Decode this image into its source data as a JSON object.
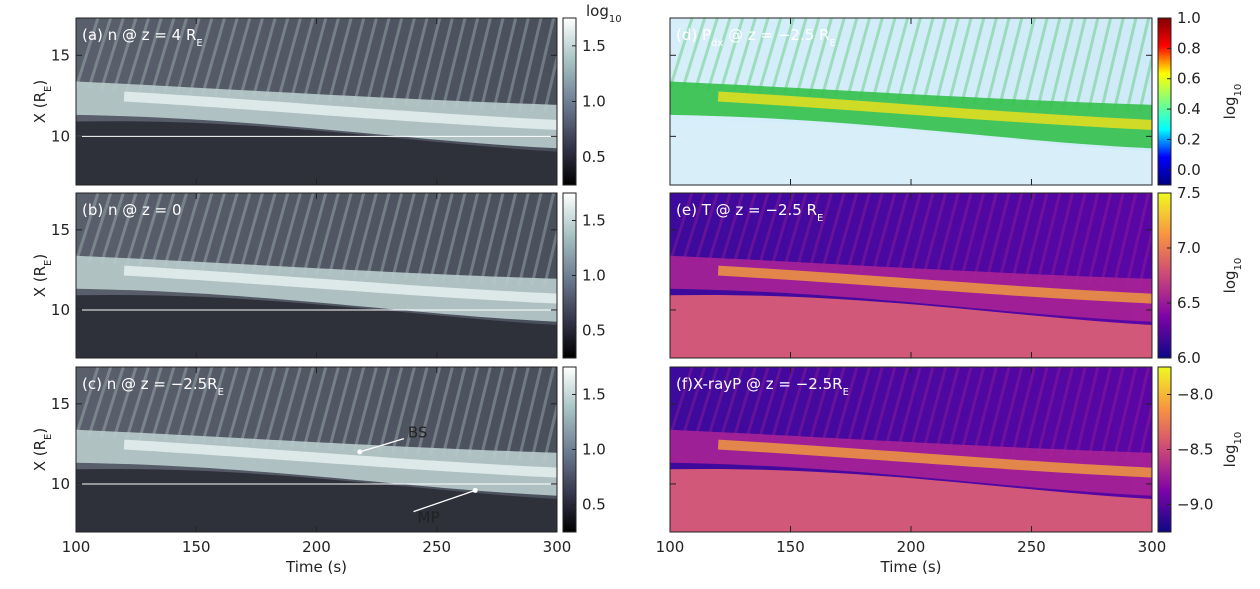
{
  "chart_data": [
    {
      "type": "heatmap",
      "title_parts": [
        "(a) n @ z = 4 R",
        "E"
      ],
      "colormap": "bone",
      "xlim": [
        100,
        300
      ],
      "xticks": [
        100,
        150,
        200,
        250,
        300
      ],
      "xtick_labels": false,
      "ylim": [
        7,
        17.3
      ],
      "yticks": [
        10,
        15
      ],
      "ytick_labels": true,
      "ylabel_parts": [
        "X (R",
        "E",
        ")"
      ],
      "hline": 10,
      "clim": [
        0.25,
        1.75
      ],
      "cticks": [
        0.5,
        {
          "value": 1.0,
          "label": "1.0"
        },
        1.5
      ],
      "clabel_parts": [
        "log",
        "10"
      ],
      "clabel_position": "top"
    },
    {
      "type": "heatmap",
      "title_parts": [
        "(b) n @ z = 0"
      ],
      "colormap": "bone",
      "xlim": [
        100,
        300
      ],
      "xticks": [
        100,
        150,
        200,
        250,
        300
      ],
      "xtick_labels": false,
      "ylim": [
        7,
        17.3
      ],
      "yticks": [
        10,
        15
      ],
      "ytick_labels": true,
      "ylabel_parts": [
        "X (R",
        "E",
        ")"
      ],
      "hline": 10,
      "clim": [
        0.25,
        1.75
      ],
      "cticks": [
        0.5,
        {
          "value": 1.0,
          "label": "1.0"
        },
        1.5
      ]
    },
    {
      "type": "heatmap",
      "title_parts": [
        "(c) n @ z = −2.5R",
        "E"
      ],
      "colormap": "bone",
      "xlim": [
        100,
        300
      ],
      "xticks": [
        100,
        150,
        200,
        250,
        300
      ],
      "xtick_labels": true,
      "xlabel": "Time (s)",
      "ylim": [
        7,
        17.3
      ],
      "yticks": [
        10,
        15
      ],
      "ytick_labels": true,
      "ylabel_parts": [
        "X (R",
        "E",
        ")"
      ],
      "hline": 10,
      "clim": [
        0.25,
        1.75
      ],
      "cticks": [
        0.5,
        {
          "value": 1.0,
          "label": "1.0"
        },
        1.5
      ],
      "annotations": [
        {
          "text": "BS",
          "x": 238,
          "y": 13.2,
          "arrow_x": 218,
          "arrow_y": 12.0
        },
        {
          "text": "MP",
          "x": 242,
          "y": 7.9,
          "arrow_x": 266,
          "arrow_y": 9.6
        }
      ]
    },
    {
      "type": "heatmap",
      "title_parts": [
        "(d) P",
        "dx",
        " @ z = −2.5 R",
        "E"
      ],
      "colormap": "jet",
      "xlim": [
        100,
        300
      ],
      "xticks": [
        100,
        150,
        200,
        250,
        300
      ],
      "xtick_labels": false,
      "ylim": [
        7,
        17.3
      ],
      "yticks": [
        10,
        15
      ],
      "ytick_labels": false,
      "clim": [
        -0.1,
        1.0
      ],
      "cticks": [
        {
          "value": 0.0,
          "label": "0.0"
        },
        0.2,
        0.4,
        0.6,
        0.8,
        {
          "value": 1.0,
          "label": "1.0"
        }
      ],
      "clabel_parts": [
        "log",
        "10"
      ],
      "clabel_position": "side"
    },
    {
      "type": "heatmap",
      "title_parts": [
        "(e) T @ z = −2.5 R",
        "E"
      ],
      "colormap": "plasma",
      "xlim": [
        100,
        300
      ],
      "xticks": [
        100,
        150,
        200,
        250,
        300
      ],
      "xtick_labels": false,
      "ylim": [
        7,
        17.3
      ],
      "yticks": [
        10,
        15
      ],
      "ytick_labels": false,
      "clim": [
        6.0,
        7.5
      ],
      "cticks": [
        {
          "value": 6.0,
          "label": "6.0"
        },
        6.5,
        {
          "value": 7.0,
          "label": "7.0"
        },
        7.5
      ],
      "clabel_parts": [
        "log",
        "10"
      ],
      "clabel_position": "side"
    },
    {
      "type": "heatmap",
      "title_parts": [
        "(f)X-rayP @ z = −2.5R",
        "E"
      ],
      "colormap": "plasma",
      "xlim": [
        100,
        300
      ],
      "xticks": [
        100,
        150,
        200,
        250,
        300
      ],
      "xtick_labels": true,
      "xlabel": "Time (s)",
      "ylim": [
        7,
        17.3
      ],
      "yticks": [
        10,
        15
      ],
      "ytick_labels": false,
      "clim": [
        -9.25,
        -7.75
      ],
      "cticks": [
        {
          "value": -9.0,
          "label": "−9.0"
        },
        {
          "value": -8.5,
          "label": "−8.5"
        },
        {
          "value": -8.0,
          "label": "−8.0"
        }
      ],
      "clabel_parts": [
        "log",
        "10"
      ],
      "clabel_position": "side"
    }
  ]
}
